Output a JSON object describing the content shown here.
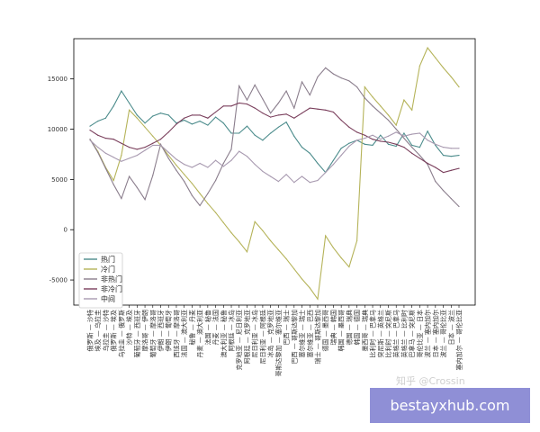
{
  "chart_data": {
    "type": "line",
    "ylim": [
      -7500,
      19000
    ],
    "yticks": [
      -5000,
      0,
      5000,
      10000,
      15000
    ],
    "categories": [
      "俄罗斯 — 沙特",
      "埃及 — 乌拉圭",
      "乌拉圭 — 沙特",
      "俄罗斯 — 埃及",
      "乌拉圭 — 俄罗斯",
      "沙特 — 埃及",
      "葡萄牙 — 西班牙",
      "摩洛哥 — 伊朗",
      "葡萄牙 — 摩洛哥",
      "伊朗 — 西班牙",
      "伊朗 — 葡萄牙",
      "西班牙 — 摩洛哥",
      "法国 — 澳大利亚",
      "秘鲁 — 丹麦",
      "丹麦 — 澳大利亚",
      "法国 — 秘鲁",
      "丹麦 — 法国",
      "澳大利亚 — 秘鲁",
      "阿根廷 — 冰岛",
      "克罗地亚 — 尼日利亚",
      "阿根廷 — 克罗地亚",
      "尼日利亚 — 冰岛",
      "尼日利亚 — 阿根廷",
      "冰岛 — 克罗地亚",
      "哥斯达黎加 — 塞尔维亚",
      "巴西 — 瑞士",
      "巴西 — 哥斯达黎加",
      "塞尔维亚 — 瑞士",
      "塞尔维亚 — 巴西",
      "瑞士 — 哥斯达黎加",
      "德国 — 墨西哥",
      "瑞典 — 韩国",
      "韩国 — 墨西哥",
      "德国 — 瑞典",
      "韩国 — 德国",
      "墨西哥 — 瑞典",
      "比利时 — 巴拿马",
      "突尼斯 — 英格兰",
      "比利时 — 突尼斯",
      "英格兰 — 巴拿马",
      "英格兰 — 比利时",
      "巴拿马 — 突尼斯",
      "哥伦比亚 — 日本",
      "波兰 — 塞内加尔",
      "日本 — 塞内加尔",
      "波兰 — 哥伦比亚",
      "日本 — 波兰",
      "塞内加尔 — 哥伦比亚"
    ],
    "series": [
      {
        "name": "热门",
        "color": "#4c8c8c",
        "values": [
          10300,
          10800,
          11100,
          12300,
          13800,
          12600,
          11400,
          10600,
          11300,
          11600,
          11400,
          10600,
          10900,
          10500,
          10800,
          10400,
          11200,
          10600,
          9600,
          9600,
          10300,
          9400,
          8900,
          9600,
          10200,
          10700,
          9300,
          8200,
          7600,
          6600,
          5700,
          6900,
          8100,
          8600,
          8900,
          8500,
          8400,
          9400,
          8500,
          8300,
          9600,
          8400,
          8200,
          9800,
          8400,
          7400,
          7300,
          7400
        ]
      },
      {
        "name": "冷门",
        "color": "#b5b359",
        "values": [
          9000,
          7800,
          6200,
          4900,
          7400,
          11900,
          11100,
          10200,
          9300,
          8400,
          7400,
          6400,
          5500,
          4600,
          3600,
          2600,
          1700,
          700,
          -300,
          -1200,
          -2200,
          800,
          -100,
          -1100,
          -2000,
          -2900,
          -3900,
          -4900,
          -5800,
          -6900,
          -600,
          -1800,
          -2800,
          -3700,
          -1100,
          14200,
          13200,
          12300,
          11400,
          10400,
          12900,
          11900,
          16300,
          18100,
          17100,
          16100,
          15200,
          14200
        ]
      },
      {
        "name": "非热门",
        "color": "#8a7d8c",
        "values": [
          9000,
          7700,
          6100,
          4500,
          3100,
          5300,
          4200,
          3000,
          5400,
          8500,
          7100,
          5900,
          4800,
          3400,
          2400,
          3600,
          4900,
          6600,
          8000,
          14300,
          12900,
          14400,
          13000,
          11600,
          12600,
          13800,
          12100,
          14700,
          13400,
          15200,
          16100,
          15500,
          15100,
          14800,
          14200,
          13100,
          12300,
          11600,
          10900,
          10000,
          9100,
          8200,
          7400,
          6500,
          4800,
          3900,
          3100,
          2300
        ]
      },
      {
        "name": "非冷门",
        "color": "#7a3f5c",
        "values": [
          9900,
          9400,
          9100,
          9000,
          8600,
          8200,
          8000,
          8200,
          8600,
          9000,
          9700,
          10500,
          11100,
          11400,
          11400,
          11100,
          11700,
          12300,
          12300,
          12600,
          12500,
          12100,
          11600,
          11200,
          11400,
          11500,
          11100,
          11600,
          12100,
          12000,
          11900,
          11700,
          10900,
          10200,
          9700,
          9400,
          9000,
          8800,
          8700,
          8500,
          8200,
          7600,
          7100,
          6600,
          6200,
          5700,
          5900,
          6100
        ]
      },
      {
        "name": "中间",
        "color": "#a89ab0",
        "values": [
          8900,
          8200,
          7600,
          7200,
          6800,
          7100,
          7400,
          7900,
          8400,
          8400,
          7700,
          7000,
          6500,
          6200,
          6600,
          6200,
          6900,
          6300,
          6900,
          7800,
          7300,
          6500,
          5800,
          5300,
          4800,
          5500,
          4700,
          5300,
          4700,
          4900,
          5700,
          6500,
          7400,
          8300,
          8900,
          9100,
          9400,
          9000,
          9300,
          9700,
          9300,
          9500,
          9600,
          8900,
          8500,
          8200,
          8100,
          8100
        ]
      }
    ],
    "legend": "lower-left"
  },
  "watermark": {
    "text": "知乎 @Crossin"
  },
  "banner": {
    "text": "bestayxhub.com"
  }
}
